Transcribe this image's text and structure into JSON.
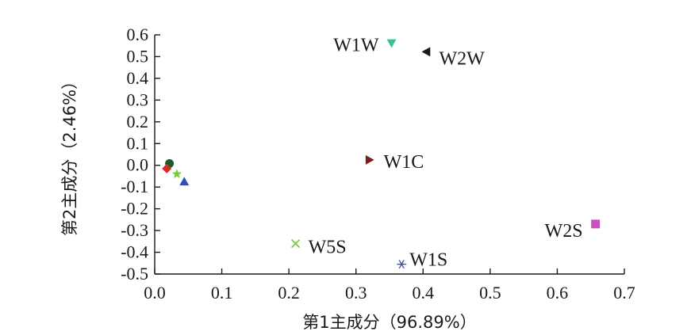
{
  "chart_data": {
    "type": "scatter",
    "title": "",
    "xlabel": "第1主成分（96.89%）",
    "ylabel": "第2主成分（2.46%）",
    "xlim": [
      0,
      0.7
    ],
    "ylim": [
      -0.5,
      0.6
    ],
    "grid": false,
    "x_ticks": [
      "0.0",
      "0.1",
      "0.2",
      "0.3",
      "0.4",
      "0.5",
      "0.6",
      "0.7"
    ],
    "y_ticks": [
      "0.6",
      "0.5",
      "0.4",
      "0.3",
      "0.2",
      "0.1",
      "0.0",
      "-0.1",
      "-0.2",
      "-0.3",
      "-0.4",
      "-0.5"
    ],
    "points": [
      {
        "label": "W1W",
        "x": 0.353,
        "y": 0.562,
        "marker": "triangle-down",
        "color": "#3dbf9a"
      },
      {
        "label": "W2W",
        "x": 0.405,
        "y": 0.522,
        "marker": "triangle-left",
        "color": "#1a1a1a"
      },
      {
        "label": "W1C",
        "x": 0.32,
        "y": 0.025,
        "marker": "triangle-right",
        "color": "#7a1f1f"
      },
      {
        "label": "W2S",
        "x": 0.657,
        "y": -0.27,
        "marker": "square",
        "color": "#cc4fbf"
      },
      {
        "label": "W5S",
        "x": 0.21,
        "y": -0.36,
        "marker": "x",
        "color": "#6fc23a"
      },
      {
        "label": "W1S",
        "x": 0.368,
        "y": -0.455,
        "marker": "asterisk",
        "color": "#3a4fa6"
      },
      {
        "label": "",
        "x": 0.022,
        "y": 0.008,
        "marker": "circle",
        "color": "#1f5a2a"
      },
      {
        "label": "",
        "x": 0.018,
        "y": -0.015,
        "marker": "diamond",
        "color": "#d42a2a"
      },
      {
        "label": "",
        "x": 0.033,
        "y": -0.04,
        "marker": "star",
        "color": "#7ccc3a"
      },
      {
        "label": "",
        "x": 0.044,
        "y": -0.075,
        "marker": "triangle-up",
        "color": "#2e4fb5"
      }
    ]
  }
}
